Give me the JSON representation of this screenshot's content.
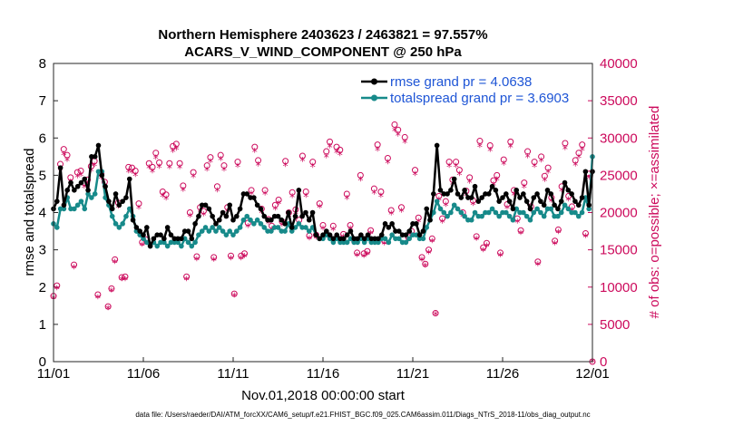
{
  "colors": {
    "rmse": "#000000",
    "spread": "#178a8a",
    "obs": "#cc0a5c",
    "legend_text": "#1e55d6"
  },
  "chart_data": {
    "type": "line",
    "title": "Northern Hemisphere 2403623 / 2463821 = 97.557%",
    "subtitle": "ACARS_V_WIND_COMPONENT @ 250 hPa",
    "xlabel": "Nov.01,2018 00:00:00 start",
    "ylabel": "rmse and totalspread",
    "ylabel_right": "# of obs: o=possible; ×=assimilated",
    "x_tick_labels": [
      "11/01",
      "11/06",
      "11/11",
      "11/16",
      "11/21",
      "11/26",
      "12/01"
    ],
    "x_tick_days": [
      0,
      5,
      10,
      15,
      20,
      25,
      30
    ],
    "xlim": [
      0,
      30
    ],
    "ylim": [
      0,
      8
    ],
    "y_ticks": [
      0,
      1,
      2,
      3,
      4,
      5,
      6,
      7,
      8
    ],
    "y2lim": [
      0,
      40000
    ],
    "y2_ticks": [
      0,
      5000,
      10000,
      15000,
      20000,
      25000,
      30000,
      35000,
      40000
    ],
    "footer": "data file: /Users/raeder/DAI/ATM_forcXX/CAM6_setup/f.e21.FHIST_BGC.f09_025.CAM6assim.011/Diags_NTrS_2018-11/obs_diag_output.nc",
    "series": [
      {
        "name": "rmse",
        "legend": "rmse grand pr = 4.0638",
        "values": [
          4.1,
          4.3,
          5.2,
          4.2,
          4.6,
          4.8,
          4.6,
          4.7,
          4.8,
          4.9,
          4.6,
          5.5,
          5.5,
          5.8,
          5.0,
          4.7,
          4.3,
          4.1,
          4.5,
          4.2,
          4.3,
          4.4,
          4.9,
          3.8,
          3.6,
          3.5,
          3.4,
          3.6,
          3.1,
          3.3,
          3.4,
          3.4,
          3.3,
          3.6,
          3.4,
          3.3,
          3.3,
          3.3,
          3.5,
          3.5,
          3.3,
          3.7,
          3.9,
          4.2,
          4.2,
          4.1,
          3.9,
          3.7,
          3.8,
          4.0,
          3.9,
          4.2,
          3.8,
          3.9,
          4.1,
          4.5,
          4.5,
          4.4,
          4.4,
          4.2,
          4.1,
          3.9,
          3.8,
          3.8,
          3.9,
          3.9,
          3.8,
          3.7,
          4.0,
          3.6,
          3.9,
          4.6,
          3.9,
          4.0,
          3.8,
          4.0,
          3.4,
          3.3,
          3.4,
          3.5,
          3.4,
          3.3,
          3.4,
          3.3,
          3.3,
          3.4,
          3.5,
          3.3,
          3.3,
          3.4,
          3.3,
          3.4,
          3.3,
          3.3,
          3.3,
          3.4,
          3.7,
          3.6,
          3.7,
          3.5,
          3.5,
          3.4,
          3.4,
          3.5,
          3.7,
          3.7,
          3.4,
          3.5,
          4.1,
          3.8,
          4.5,
          5.8,
          4.6,
          4.5,
          4.5,
          4.6,
          4.9,
          4.5,
          4.4,
          4.6,
          4.4,
          4.4,
          4.7,
          4.3,
          4.4,
          4.5,
          4.5,
          4.7,
          4.6,
          4.3,
          4.4,
          4.5,
          4.3,
          4.1,
          4.6,
          4.4,
          4.5,
          4.3,
          4.1,
          4.4,
          4.5,
          4.3,
          4.2,
          4.6,
          4.5,
          4.2,
          4.1,
          4.3,
          4.8,
          4.6,
          4.5,
          4.3,
          4.2,
          4.4,
          5.1,
          4.2,
          5.1
        ]
      },
      {
        "name": "totalspread",
        "legend": "totalspread grand pr = 3.6903",
        "values": [
          3.7,
          3.6,
          4.1,
          4.1,
          4.4,
          4.1,
          4.1,
          4.2,
          4.3,
          4.1,
          4.5,
          4.4,
          4.5,
          5.1,
          5.1,
          4.4,
          4.2,
          3.9,
          3.7,
          3.6,
          3.7,
          3.9,
          4.1,
          3.9,
          3.5,
          3.4,
          3.3,
          3.2,
          3.1,
          3.2,
          3.1,
          3.2,
          3.2,
          3.1,
          3.2,
          3.2,
          3.2,
          3.1,
          3.3,
          3.2,
          3.1,
          3.2,
          3.4,
          3.5,
          3.6,
          3.5,
          3.6,
          3.5,
          3.6,
          3.5,
          3.4,
          3.5,
          3.4,
          3.5,
          3.6,
          3.8,
          3.9,
          3.8,
          3.7,
          3.8,
          3.7,
          3.6,
          3.5,
          3.5,
          3.6,
          3.6,
          3.5,
          3.5,
          3.7,
          3.5,
          3.6,
          3.7,
          3.6,
          3.6,
          3.5,
          3.6,
          3.4,
          3.3,
          3.3,
          3.4,
          3.3,
          3.2,
          3.3,
          3.2,
          3.2,
          3.2,
          3.3,
          3.2,
          3.2,
          3.3,
          3.2,
          3.3,
          3.2,
          3.2,
          3.2,
          3.3,
          3.3,
          3.2,
          3.4,
          3.3,
          3.3,
          3.2,
          3.2,
          3.3,
          3.4,
          3.4,
          3.3,
          3.3,
          3.6,
          3.8,
          4.0,
          4.3,
          4.1,
          4.0,
          3.9,
          4.0,
          4.2,
          4.1,
          4.0,
          3.9,
          3.8,
          3.8,
          4.0,
          3.9,
          3.9,
          4.0,
          4.0,
          4.1,
          4.0,
          3.9,
          4.0,
          4.0,
          3.9,
          3.8,
          4.1,
          4.0,
          4.0,
          3.9,
          3.8,
          4.0,
          4.1,
          4.0,
          3.9,
          4.1,
          4.1,
          3.9,
          3.9,
          4.0,
          4.2,
          4.1,
          4.0,
          4.0,
          3.9,
          4.0,
          4.4,
          4.1,
          5.5
        ]
      }
    ],
    "obs_possible": [
      8800,
      10200,
      26500,
      28500,
      27700,
      24700,
      13000,
      25400,
      25600,
      24000,
      24400,
      26200,
      26900,
      9000,
      25200,
      24100,
      7400,
      9800,
      13700,
      21300,
      11300,
      11400,
      26100,
      26000,
      25600,
      21200,
      16000,
      16400,
      26600,
      26100,
      28000,
      26700,
      22800,
      22400,
      26600,
      28900,
      29200,
      26600,
      23600,
      11400,
      20000,
      25400,
      14100,
      20700,
      20200,
      26300,
      27400,
      14000,
      23500,
      27700,
      26300,
      20700,
      14200,
      9100,
      26800,
      14200,
      14500,
      18600,
      23000,
      28800,
      27000,
      20500,
      23000,
      19100,
      18200,
      21000,
      21700,
      18800,
      26900,
      20000,
      22700,
      20400,
      19000,
      27600,
      22800,
      16900,
      26800,
      17000,
      21200,
      18300,
      28200,
      29500,
      18200,
      28800,
      28400,
      17100,
      22500,
      18300,
      16400,
      14600,
      25000,
      14500,
      14800,
      17600,
      23200,
      29100,
      22800,
      16200,
      27300,
      20300,
      31800,
      31100,
      20700,
      30100,
      16700,
      17500,
      25700,
      19300,
      14000,
      13100,
      15000,
      16500,
      6500,
      22200,
      19200,
      21500,
      26800,
      24400,
      26800,
      25700,
      20000,
      22900,
      24700,
      21600,
      16800,
      29600,
      15300,
      15900,
      29000,
      24300,
      25000,
      14600,
      27100,
      21100,
      29500,
      23000,
      19200,
      17600,
      24000,
      28200,
      20800,
      26800,
      13400,
      27500,
      24900,
      26000,
      22000,
      16200,
      17700,
      23500,
      29300,
      22200,
      20800,
      27000,
      28000,
      29100,
      17200,
      25200,
      0
    ],
    "obs_assimilated": [
      8500,
      9800,
      25800,
      27800,
      27000,
      24100,
      12600,
      24800,
      25000,
      23400,
      23800,
      25600,
      26300,
      8600,
      24600,
      23500,
      7100,
      9500,
      13300,
      20700,
      11000,
      11000,
      25500,
      25400,
      25000,
      20600,
      15600,
      16000,
      26000,
      25500,
      27300,
      26100,
      22200,
      21800,
      26000,
      28200,
      28500,
      26000,
      23000,
      11000,
      19500,
      24800,
      13700,
      20200,
      19700,
      25700,
      26800,
      13600,
      22900,
      27100,
      25700,
      20200,
      13800,
      8800,
      26200,
      13800,
      14100,
      18100,
      22500,
      28200,
      26400,
      20000,
      22500,
      18600,
      17700,
      20500,
      21200,
      18300,
      26300,
      19500,
      22100,
      19900,
      18500,
      27000,
      22200,
      16500,
      26200,
      16600,
      20700,
      17800,
      27500,
      28800,
      17700,
      28100,
      27800,
      16700,
      21900,
      17800,
      16000,
      14200,
      24400,
      14100,
      14400,
      17200,
      22600,
      28400,
      22200,
      15800,
      26700,
      19800,
      31000,
      30400,
      20200,
      29400,
      16300,
      17000,
      25100,
      18800,
      13600,
      12800,
      14600,
      16100,
      6300,
      21700,
      18700,
      21000,
      26200,
      23800,
      26200,
      25100,
      19500,
      22300,
      24100,
      21100,
      16400,
      28900,
      14900,
      15500,
      28300,
      23700,
      24400,
      14200,
      26500,
      20600,
      28800,
      22400,
      18700,
      17200,
      23400,
      27500,
      20300,
      26200,
      13000,
      26900,
      24300,
      25400,
      21500,
      15800,
      17300,
      22900,
      28600,
      21700,
      20300,
      26400,
      27400,
      28400,
      16800,
      24600,
      0
    ]
  }
}
